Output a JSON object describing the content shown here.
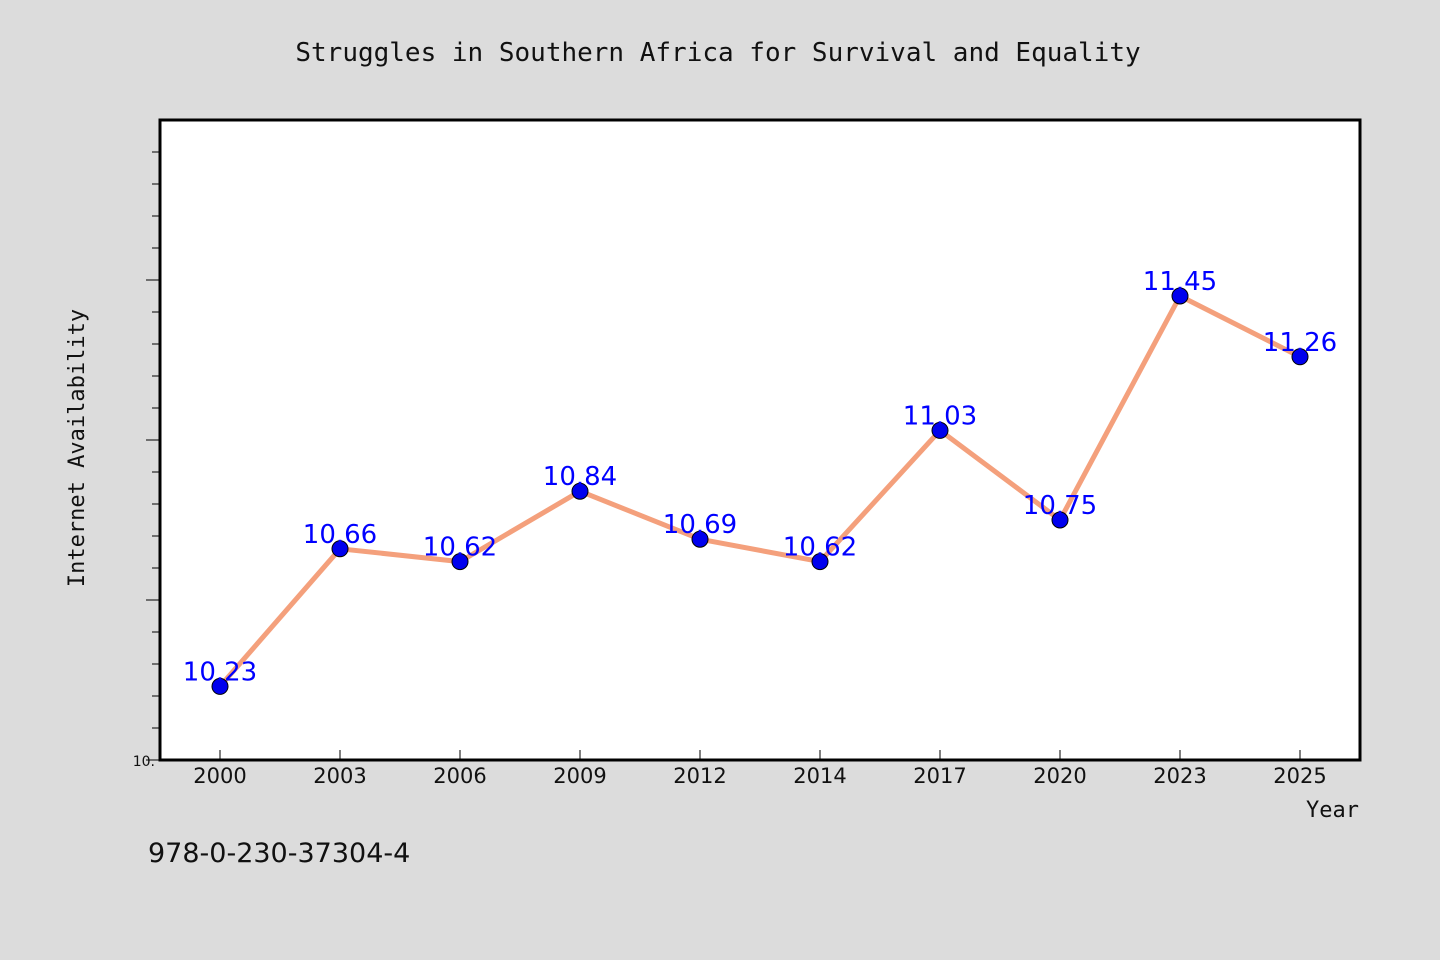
{
  "chart_data": {
    "type": "line",
    "title": "Struggles in Southern Africa for Survival and Equality",
    "xlabel": "Year",
    "ylabel": "Internet Availability",
    "categories": [
      "2000",
      "2003",
      "2006",
      "2009",
      "2012",
      "2014",
      "2017",
      "2020",
      "2023",
      "2025"
    ],
    "series": [
      {
        "values": [
          10.23,
          10.66,
          10.62,
          10.84,
          10.69,
          10.62,
          11.03,
          10.75,
          11.45,
          11.26
        ],
        "labels": [
          "10.23",
          "10.66",
          "10.62",
          "10.84",
          "10.69",
          "10.62",
          "11.03",
          "10.75",
          "11.45",
          "11.26"
        ]
      }
    ],
    "ylim": [
      10.0,
      12.0
    ],
    "ytick_label": "10.",
    "line_color": "#f4a07c",
    "marker_color": "#0000ee",
    "label_color": "#0000ff",
    "grid": false,
    "legend": "none"
  },
  "annotation": {
    "isbn": "978-0-230-37304-4"
  },
  "colors": {
    "figure_background": "#dcdcdc",
    "plot_background": "#ffffff"
  }
}
